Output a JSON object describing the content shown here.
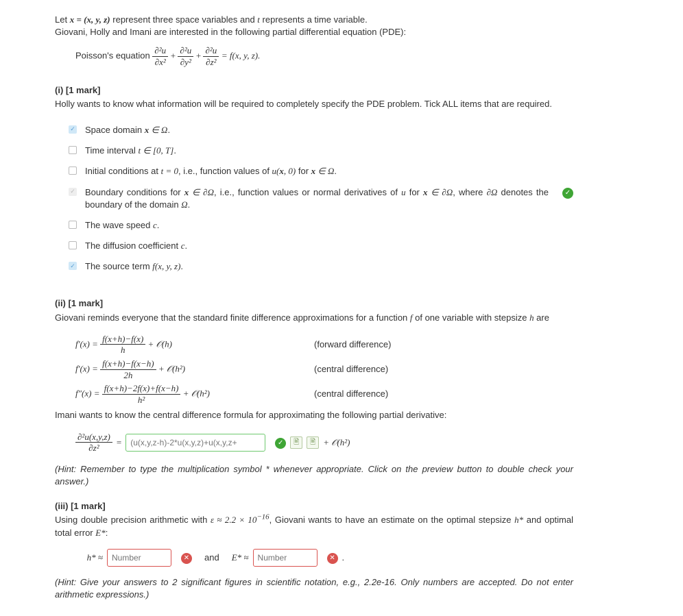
{
  "intro": {
    "line1_pre": "Let ",
    "line1_eq": "x = (x, y, z)",
    "line1_mid": " represent three space variables and ",
    "line1_t": "t",
    "line1_post": " represents a time variable.",
    "line2": "Giovani, Holly and Imani are interested in the following partial differential equation (PDE):",
    "poisson_label": "Poisson's equation ",
    "poisson_rhs": " = f(x, y, z)."
  },
  "fracs": {
    "p1n": "∂²u",
    "p1d": "∂x²",
    "p2n": "∂²u",
    "p2d": "∂y²",
    "p3n": "∂²u",
    "p3d": "∂z²"
  },
  "sec_i": {
    "head": "(i) [1 mark]",
    "text": "Holly wants to know what information will be required to completely specify the PDE problem. Tick ALL items that are required."
  },
  "items": [
    {
      "state": "correct",
      "pre": "Space domain ",
      "math": "x ∈ Ω",
      "post": "."
    },
    {
      "state": "unchecked",
      "pre": "Time interval ",
      "math": "t ∈ [0, T]",
      "post": "."
    },
    {
      "state": "unchecked",
      "pre": "Initial conditions at ",
      "math": "t = 0",
      "post": ", i.e., function values of ",
      "math2": "u(x, 0)",
      "post2": " for ",
      "math3": "x ∈ Ω",
      "post3": "."
    },
    {
      "state": "disabled",
      "pre": "Boundary conditions for ",
      "math": "x ∈ ∂Ω",
      "post": ", i.e., function values or normal derivatives of ",
      "math2": "u",
      "post2": " for ",
      "math3": "x ∈ ∂Ω",
      "post3": ", where ",
      "math4": "∂Ω",
      "post4": " denotes the boundary of the domain ",
      "math5": "Ω",
      "post5": ".",
      "hasFeedback": true
    },
    {
      "state": "unchecked",
      "pre": "The wave speed ",
      "math": "c",
      "post": "."
    },
    {
      "state": "unchecked",
      "pre": "The diffusion coefficient ",
      "math": "c",
      "post": "."
    },
    {
      "state": "correct",
      "pre": "The source term ",
      "math": "f(x, y, z)",
      "post": "."
    }
  ],
  "sec_ii": {
    "head": "(ii) [1 mark]",
    "text_pre": "Giovani reminds everyone that the standard finite difference approximations for a function ",
    "text_f": "f",
    "text_mid": " of one variable with stepsize ",
    "text_h": "h",
    "text_post": " are",
    "formulas": [
      {
        "lhs": "f′(x) = ",
        "num": "f(x+h)−f(x)",
        "den": "h",
        "order": " + 𝒪(h)",
        "label": "(forward difference)"
      },
      {
        "lhs": "f′(x) = ",
        "num": "f(x+h)−f(x−h)",
        "den": "2h",
        "order": " + 𝒪(h²)",
        "label": "(central difference)"
      },
      {
        "lhs": "f″(x) = ",
        "num": "f(x+h)−2f(x)+f(x−h)",
        "den": "h²",
        "order": " + 𝒪(h²)",
        "label": "(central difference)"
      }
    ],
    "text2": "Imani wants to know the central difference formula for approximating the following partial derivative:",
    "lhs_num": "∂²u(x,y,z)",
    "lhs_den": "∂z²",
    "equals": " = ",
    "input_value": "(u(x,y,z-h)-2*u(x,y,z)+u(x,y,z+",
    "tail": " + 𝒪(h²)",
    "hint": "(Hint: Remember to type the multiplication symbol * whenever appropriate. Click on the preview button to double check your answer.)"
  },
  "sec_iii": {
    "head": "(iii) [1 mark]",
    "text_pre": "Using double precision arithmetic with ",
    "eps": "ε ≈ 2.2 × 10",
    "eps_exp": "−16",
    "text_mid": ", Giovani wants to have an estimate on the optimal stepsize ",
    "hstar": "h*",
    "text_mid2": " and optimal total error ",
    "estar": "E*",
    "text_post": ":",
    "hlabel": "h* ≈ ",
    "and": "and",
    "elabel": "E* ≈ ",
    "placeholder": "Number",
    "period": ".",
    "hint": "(Hint: Give your answers to 2 significant figures in scientific notation, e.g., 2.2e-16. Only numbers are accepted. Do not enter arithmetic expressions.)"
  },
  "icons": {
    "tick": "✓",
    "cross": "✕",
    "doc": "🖹"
  }
}
